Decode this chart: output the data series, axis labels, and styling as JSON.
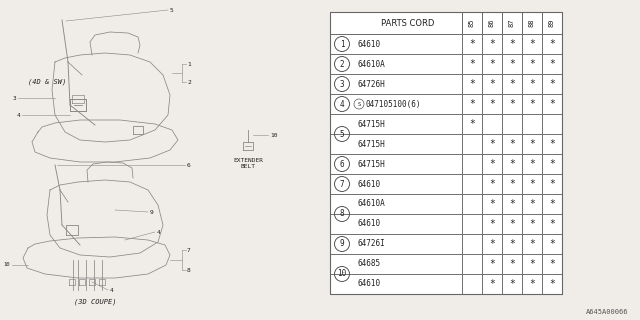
{
  "bg_color": "#f0ede8",
  "table_bg": "#ffffff",
  "table_header": "PARTS CORD",
  "col_headers": [
    "85",
    "86",
    "87",
    "88",
    "89"
  ],
  "rows": [
    {
      "ref": "1",
      "part": "64610",
      "stars": [
        1,
        1,
        1,
        1,
        1
      ],
      "ref_rows": 1
    },
    {
      "ref": "2",
      "part": "64610A",
      "stars": [
        1,
        1,
        1,
        1,
        1
      ],
      "ref_rows": 1
    },
    {
      "ref": "3",
      "part": "64726H",
      "stars": [
        1,
        1,
        1,
        1,
        1
      ],
      "ref_rows": 1
    },
    {
      "ref": "4",
      "part": "S047105100(6)",
      "stars": [
        1,
        1,
        1,
        1,
        1
      ],
      "ref_rows": 1
    },
    {
      "ref": "5",
      "part": "64715H",
      "stars": [
        1,
        0,
        0,
        0,
        0
      ],
      "ref_rows": 2
    },
    {
      "ref": "",
      "part": "64715H",
      "stars": [
        0,
        1,
        1,
        1,
        1
      ],
      "ref_rows": 0
    },
    {
      "ref": "6",
      "part": "64715H",
      "stars": [
        0,
        1,
        1,
        1,
        1
      ],
      "ref_rows": 1
    },
    {
      "ref": "7",
      "part": "64610",
      "stars": [
        0,
        1,
        1,
        1,
        1
      ],
      "ref_rows": 1
    },
    {
      "ref": "8",
      "part": "64610A",
      "stars": [
        0,
        1,
        1,
        1,
        1
      ],
      "ref_rows": 2
    },
    {
      "ref": "",
      "part": "64610",
      "stars": [
        0,
        1,
        1,
        1,
        1
      ],
      "ref_rows": 0
    },
    {
      "ref": "9",
      "part": "64726I",
      "stars": [
        0,
        1,
        1,
        1,
        1
      ],
      "ref_rows": 1
    },
    {
      "ref": "10",
      "part": "64685",
      "stars": [
        0,
        1,
        1,
        1,
        1
      ],
      "ref_rows": 2
    },
    {
      "ref": "",
      "part": "64610",
      "stars": [
        0,
        1,
        1,
        1,
        1
      ],
      "ref_rows": 0
    }
  ],
  "footer": "A645A00066",
  "line_color": "#888888",
  "text_color": "#222222",
  "diagram_upper_label": "(4D & SW)",
  "diagram_lower_label": "(3D COUPE)",
  "extender_label": "EXTENDER\nBELT"
}
